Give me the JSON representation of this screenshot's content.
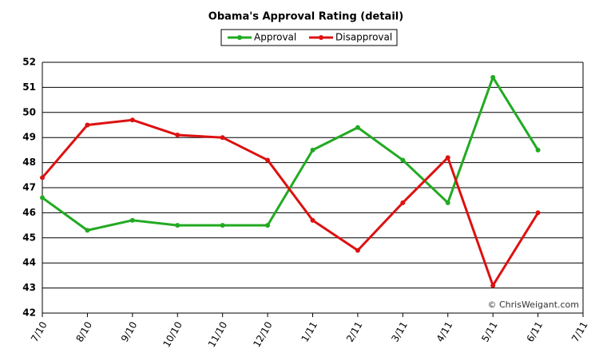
{
  "chart_data": {
    "type": "line",
    "title": "Obama's Approval Rating (detail)",
    "categories": [
      "7/10",
      "8/10",
      "9/10",
      "10/10",
      "11/10",
      "12/10",
      "1/11",
      "2/11",
      "3/11",
      "4/11",
      "5/11",
      "6/11",
      "7/11"
    ],
    "series": [
      {
        "name": "Approval",
        "color": "#22aa22",
        "values": [
          46.6,
          45.3,
          45.7,
          45.5,
          45.5,
          45.5,
          48.5,
          49.4,
          48.1,
          46.4,
          51.4,
          48.5,
          null
        ]
      },
      {
        "name": "Disapproval",
        "color": "#dd1111",
        "values": [
          47.4,
          49.5,
          49.7,
          49.1,
          49.0,
          48.1,
          45.7,
          44.5,
          46.4,
          48.2,
          43.1,
          46.0,
          null
        ]
      }
    ],
    "ylim": [
      42,
      52
    ],
    "yticks": [
      42,
      43,
      44,
      45,
      46,
      47,
      48,
      49,
      50,
      51,
      52
    ],
    "grid": true,
    "legend": "top",
    "annotation": "© ChrisWeigant.com"
  }
}
